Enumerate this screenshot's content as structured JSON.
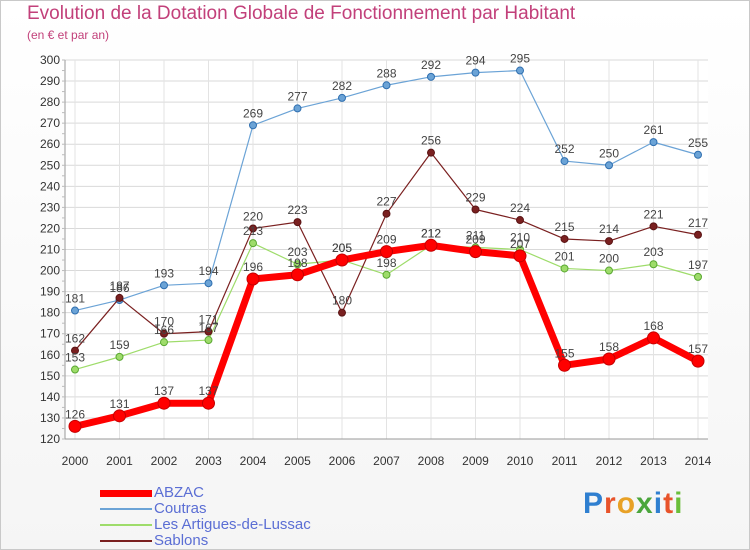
{
  "header": {
    "title": "Evolution de la Dotation Globale de Fonctionnement par Habitant",
    "subtitle": "(en € et par an)"
  },
  "brand": {
    "letters": [
      "P",
      "r",
      "o",
      "x",
      "i",
      "t",
      "i"
    ],
    "colors": [
      "#2f7fd0",
      "#e8532a",
      "#e8a126",
      "#4ba63c",
      "#2f7fd0",
      "#e8532a",
      "#6abf3a"
    ]
  },
  "chart_data": {
    "type": "line",
    "title": "Evolution de la Dotation Globale de Fonctionnement par Habitant",
    "subtitle": "(en € et par an)",
    "xlabel": "",
    "ylabel": "",
    "x": [
      "2000",
      "2001",
      "2002",
      "2003",
      "2004",
      "2005",
      "2006",
      "2007",
      "2008",
      "2009",
      "2010",
      "2011",
      "2012",
      "2013",
      "2014"
    ],
    "ylim": [
      120,
      300
    ],
    "yticks": [
      "120",
      "130",
      "140",
      "150",
      "160",
      "170",
      "180",
      "190",
      "200",
      "210",
      "220",
      "230",
      "240",
      "250",
      "260",
      "270",
      "280",
      "290",
      "300"
    ],
    "grid": true,
    "legend_position": "bottom-left",
    "series": [
      {
        "name": "ABZAC",
        "color": "#ff0000",
        "values": [
          126,
          131,
          137,
          137,
          196,
          198,
          205,
          209,
          212,
          209,
          207,
          155,
          158,
          168,
          157
        ]
      },
      {
        "name": "Coutras",
        "color": "#6ba3d6",
        "values": [
          181,
          186,
          193,
          194,
          269,
          277,
          282,
          288,
          292,
          294,
          295,
          252,
          250,
          261,
          255
        ]
      },
      {
        "name": "Les Artigues-de-Lussac",
        "color": "#9edc6a",
        "values": [
          153,
          159,
          166,
          167,
          213,
          203,
          205,
          198,
          212,
          211,
          210,
          201,
          200,
          203,
          197
        ]
      },
      {
        "name": "Sablons",
        "color": "#7a2020",
        "values": [
          162,
          187,
          170,
          171,
          220,
          223,
          180,
          227,
          256,
          229,
          224,
          215,
          214,
          221,
          217
        ]
      }
    ]
  }
}
